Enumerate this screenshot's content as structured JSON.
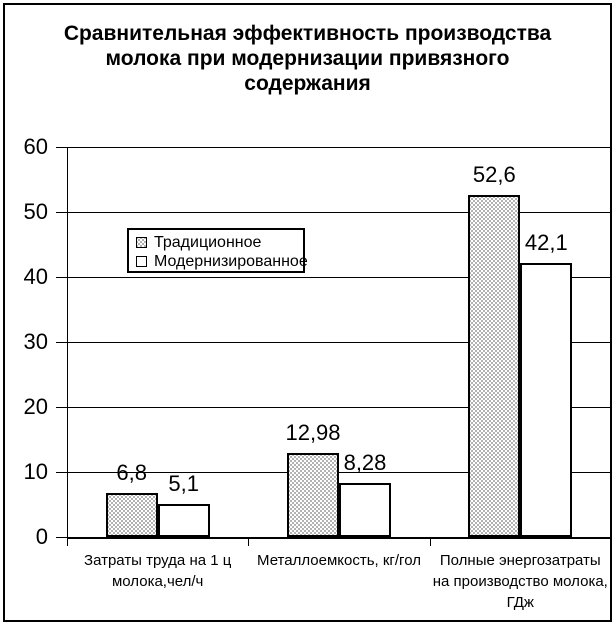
{
  "chart_data": {
    "type": "bar",
    "title": "Сравнительная эффективность производства молока при модернизации привязного содержания",
    "title_lines": [
      "Сравнительная эффективность производства",
      "молока при модернизации привязного",
      "содержания"
    ],
    "categories": [
      "Затраты труда на 1 ц молока,чел/ч",
      "Металлоемкость, кг/гол",
      "Полные энергозатраты на производство молока, ГДж"
    ],
    "category_lines": [
      [
        "Затраты труда на 1 ц",
        "молока,чел/ч"
      ],
      [
        "Металлоемкость, кг/гол"
      ],
      [
        "Полные энергозатраты",
        "на производство молока,",
        "ГДж"
      ]
    ],
    "series": [
      {
        "name": "Традиционное",
        "values": [
          6.8,
          12.98,
          52.6
        ],
        "value_labels": [
          "6,8",
          "12,98",
          "52,6"
        ],
        "fill": "pattern"
      },
      {
        "name": "Модернизированное",
        "values": [
          5.1,
          8.28,
          42.1
        ],
        "value_labels": [
          "5,1",
          "8,28",
          "42,1"
        ],
        "fill": "white"
      }
    ],
    "xlabel": "",
    "ylabel": "",
    "ylim": [
      0,
      60
    ],
    "y_ticks": [
      0,
      10,
      20,
      30,
      40,
      50,
      60
    ],
    "grid": true,
    "legend_position": "inside-upper-left",
    "decimal_separator": ",",
    "colors": {
      "axis": "#000000",
      "text": "#000000",
      "background": "#ffffff",
      "pattern_dot": "#9a9a9a",
      "modernized_fill": "#ffffff"
    }
  }
}
